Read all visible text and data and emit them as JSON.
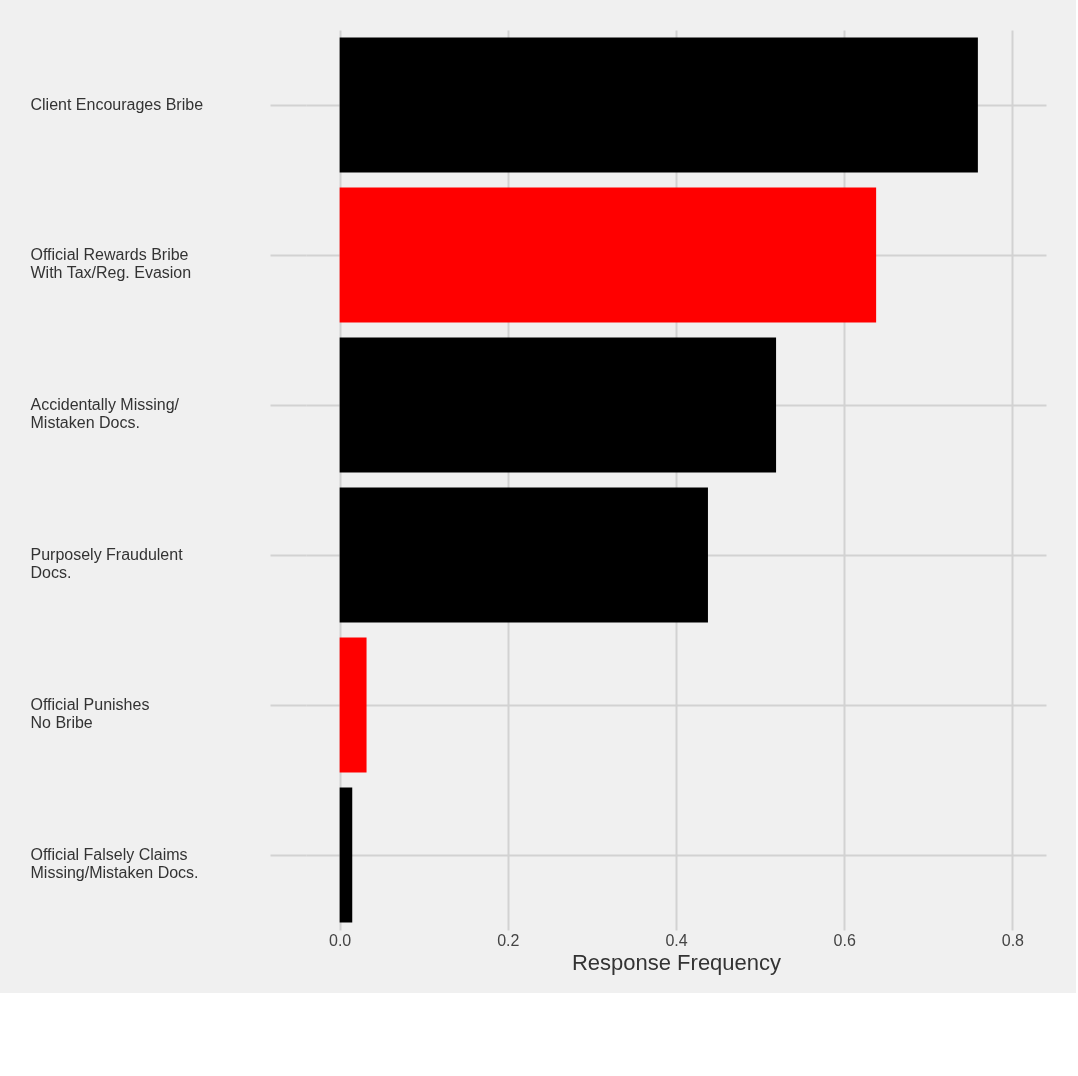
{
  "chart_data": {
    "type": "bar",
    "orientation": "horizontal",
    "xlabel": "Response Frequency",
    "categories": [
      "Client Encourages Bribe",
      "Official Rewards Bribe\nWith Tax/Reg. Evasion",
      "Accidentally Missing/\nMistaken Docs.",
      "Purposely Fraudulent\nDocs.",
      "Official Punishes\nNo Bribe",
      "Official Falsely Claims\nMissing/Mistaken Docs."
    ],
    "values": [
      0.759,
      0.638,
      0.519,
      0.438,
      0.032,
      0.015
    ],
    "colors": [
      "#000000",
      "#ff0000",
      "#000000",
      "#000000",
      "#ff0000",
      "#000000"
    ],
    "xlim": [
      -0.04,
      0.84
    ],
    "xticks": [
      {
        "value": 0,
        "label": "0.0"
      },
      {
        "value": 0.2,
        "label": "0.2"
      },
      {
        "value": 0.4,
        "label": "0.4"
      },
      {
        "value": 0.6,
        "label": "0.6"
      },
      {
        "value": 0.8,
        "label": "0.8"
      }
    ],
    "grid": true
  }
}
